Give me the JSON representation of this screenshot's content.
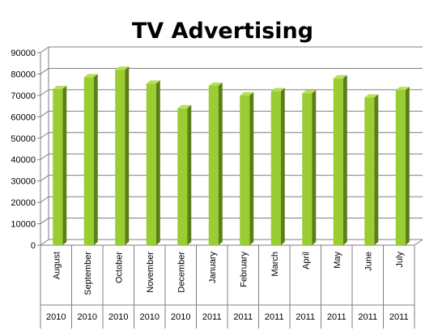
{
  "chart_data": {
    "type": "bar",
    "title": "TV Advertising",
    "xlabel": "",
    "ylabel": "",
    "ylim": [
      0,
      90000
    ],
    "y_ticks": [
      "0",
      "10000",
      "20000",
      "30000",
      "40000",
      "50000",
      "60000",
      "70000",
      "80000",
      "90000"
    ],
    "grid": true,
    "legend": "none",
    "categories": [
      "August",
      "September",
      "October",
      "November",
      "December",
      "January",
      "February",
      "March",
      "April",
      "May",
      "June",
      "July"
    ],
    "years": [
      "2010",
      "2010",
      "2010",
      "2010",
      "2010",
      "2011",
      "2011",
      "2011",
      "2011",
      "2011",
      "2011",
      "2011"
    ],
    "series": [
      {
        "values": [
          73000,
          78500,
          82000,
          75500,
          64000,
          74500,
          70000,
          72000,
          71000,
          78000,
          69000,
          72500
        ]
      }
    ],
    "colors": {
      "bar_front": "#9acd32",
      "bar_side": "#5b7f16",
      "bar_top": "#b7e05a",
      "grid": "#7f7f7f",
      "axis": "#7f7f7f"
    }
  }
}
